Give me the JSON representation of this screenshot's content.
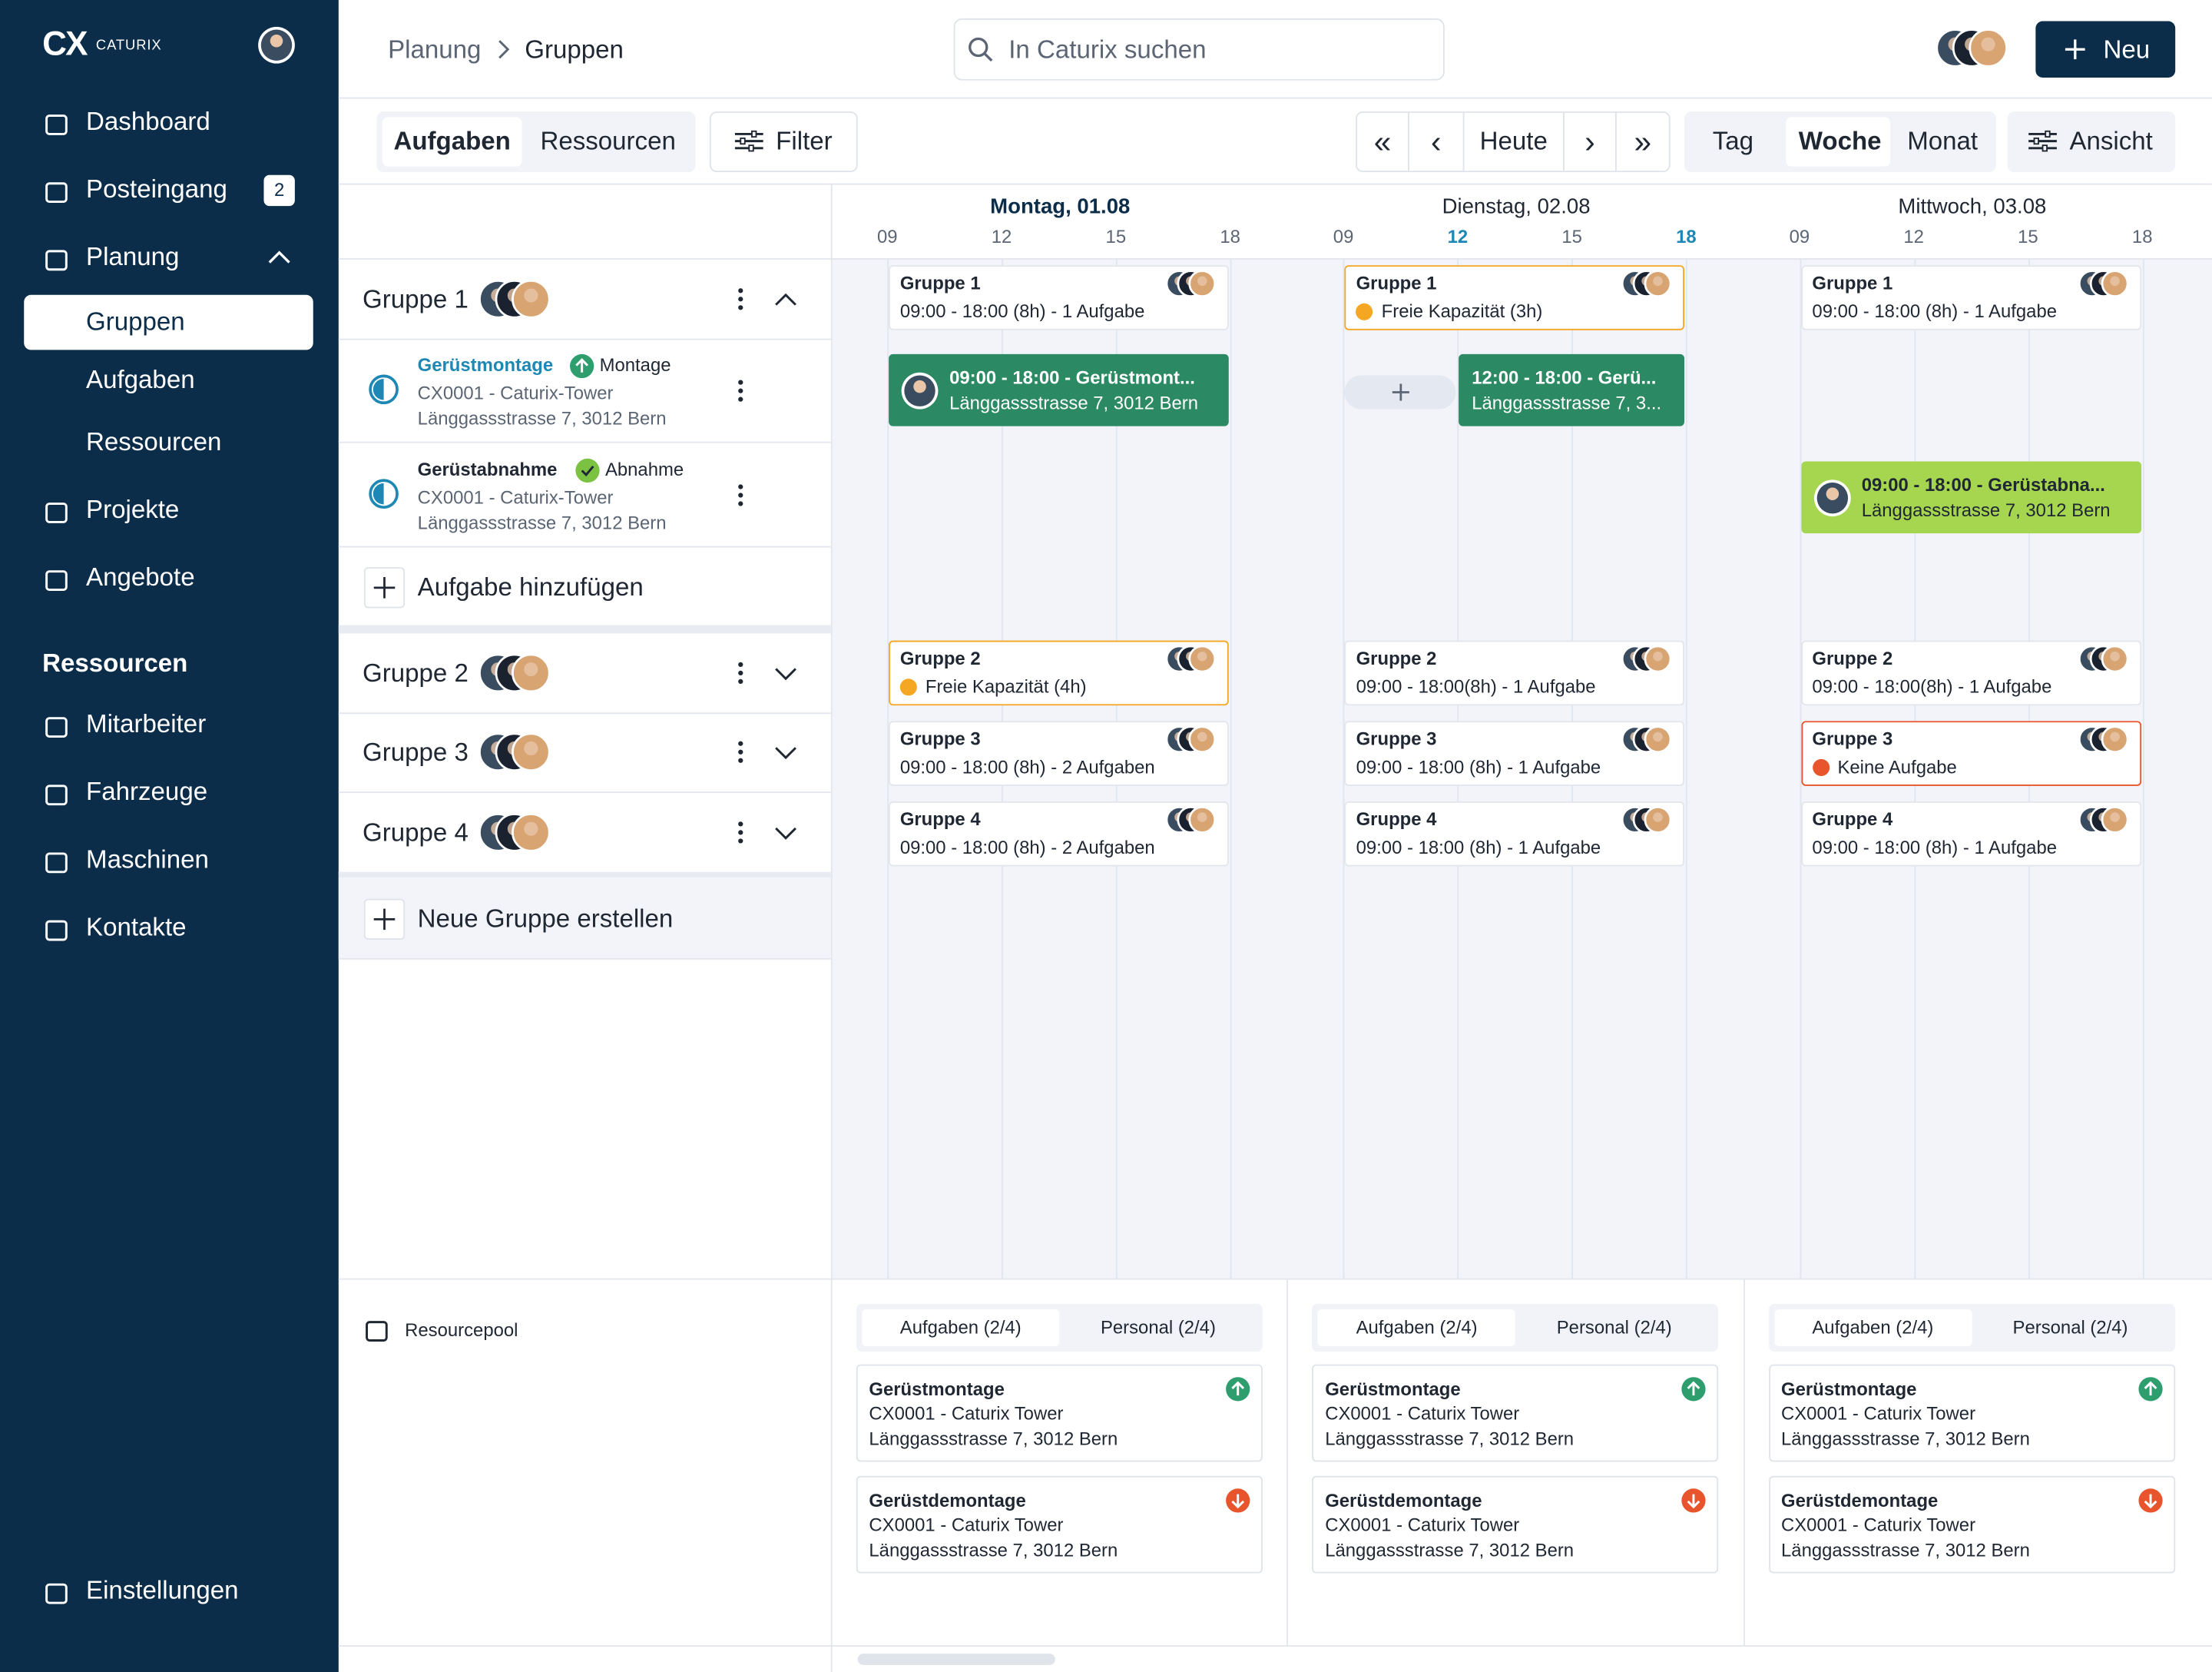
{
  "sidebar": {
    "logo": {
      "mark": "CX",
      "name": "CATURIX"
    },
    "items": [
      {
        "label": "Dashboard"
      },
      {
        "label": "Posteingang",
        "badge": 2
      },
      {
        "label": "Planung",
        "children": [
          "Gruppen",
          "Aufgaben",
          "Ressourcen"
        ]
      },
      {
        "label": "Projekte"
      },
      {
        "label": "Angebote"
      }
    ],
    "section_title": "Ressourcen",
    "resource_items": [
      "Mitarbeiter",
      "Fahrzeuge",
      "Maschinen",
      "Kontakte"
    ],
    "settings": "Einstellungen"
  },
  "header": {
    "breadcrumb": [
      "Planung",
      "Gruppen"
    ],
    "search": "In Caturix suchen",
    "new_button": "Neu"
  },
  "toolbar": {
    "tabs": [
      "Aufgaben",
      "Ressourcen"
    ],
    "filter": "Filter",
    "first": "«",
    "prev": "‹",
    "today": "Heute",
    "next": "›",
    "last": "»",
    "views": [
      "Tag",
      "Woche",
      "Monat"
    ],
    "view_settings": "Ansicht"
  },
  "groups": [
    {
      "name": "Gruppe 1",
      "tasks": [
        {
          "title": "Gerüstmontage",
          "tag": "Montage",
          "project": "CX0001 - Caturix-Tower",
          "address": "Länggassstrasse 7, 3012 Bern"
        },
        {
          "title": "Gerüstabnahme",
          "tag": "Abnahme",
          "project": "CX0001 - Caturix-Tower",
          "address": "Länggassstrasse 7, 3012 Bern"
        }
      ]
    },
    {
      "name": "Gruppe 2"
    },
    {
      "name": "Gruppe 3"
    },
    {
      "name": "Gruppe 4"
    }
  ],
  "add_task": "Aufgabe hinzufügen",
  "new_group": "Neue Gruppe erstellen",
  "days": [
    {
      "label": "Montag, 01.08",
      "active": true,
      "hours": [
        "09",
        "12",
        "15",
        "18"
      ],
      "highlighted_hours": [],
      "cells": [
        {
          "text": "09:00 - 18:00 (8h) - 1 Aufgabe",
          "status": "ok"
        },
        {
          "text": "Freie Kapazität (4h)",
          "status": "warning"
        },
        {
          "text": "09:00 - 18:00 (8h) - 2 Aufgaben",
          "status": "ok"
        },
        {
          "text": "09:00 - 18:00 (8h) - 2 Aufgaben",
          "status": "ok"
        }
      ],
      "events": [
        {
          "task": 0,
          "text": "09:00 - 18:00 - Gerüstmont...",
          "address": "Länggassstrasse 7, 3012 Bern",
          "color": "#2b8a63",
          "text_color": "#ffffff"
        }
      ]
    },
    {
      "label": "Dienstag, 02.08",
      "active": false,
      "hours": [
        "09",
        "12",
        "15",
        "18"
      ],
      "highlighted_hours": [
        1,
        3
      ],
      "cells": [
        {
          "text": "Freie Kapazität (3h)",
          "status": "warning"
        },
        {
          "text": "09:00 - 18:00(8h) - 1 Aufgabe",
          "status": "ok"
        },
        {
          "text": "09:00 - 18:00 (8h) - 1 Aufgabe",
          "status": "ok"
        },
        {
          "text": "09:00 - 18:00 (8h) - 1 Aufgabe",
          "status": "ok"
        }
      ],
      "events": [
        {
          "task": 0,
          "text": "12:00 - 18:00 - Gerü...",
          "address": "Länggassstrasse 7, 3...",
          "color": "#2b8a63",
          "text_color": "#ffffff",
          "free_slot": true
        }
      ]
    },
    {
      "label": "Mittwoch, 03.08",
      "active": false,
      "hours": [
        "09",
        "12",
        "15",
        "18"
      ],
      "highlighted_hours": [],
      "cells": [
        {
          "text": "09:00 - 18:00 (8h) - 1 Aufgabe",
          "status": "ok"
        },
        {
          "text": "09:00 - 18:00(8h) - 1 Aufgabe",
          "status": "ok"
        },
        {
          "text": "Keine Aufgabe",
          "status": "error"
        },
        {
          "text": "09:00 - 18:00 (8h) - 1 Aufgabe",
          "status": "ok"
        }
      ],
      "events": [
        {
          "task": 1,
          "text": "09:00 - 18:00 - Gerüstabna...",
          "address": "Länggassstrasse 7, 3012 Bern",
          "color": "#a6d650",
          "text_color": "#1f2733"
        }
      ]
    }
  ],
  "pool": {
    "label": "Resourcepool",
    "columns": [
      {
        "tabs": [
          "Aufgaben (2/4)",
          "Personal (2/4)"
        ],
        "cards": [
          {
            "title": "Gerüstmontage",
            "project": "CX0001 - Caturix Tower",
            "address": "Länggassstrasse 7, 3012 Bern",
            "direction": "up"
          },
          {
            "title": "Gerüstdemontage",
            "project": "CX0001 - Caturix Tower",
            "address": "Länggassstrasse 7, 3012 Bern",
            "direction": "down"
          }
        ]
      },
      {
        "tabs": [
          "Aufgaben (2/4)",
          "Personal (2/4)"
        ],
        "cards": [
          {
            "title": "Gerüstmontage",
            "project": "CX0001 - Caturix Tower",
            "address": "Länggassstrasse 7, 3012 Bern",
            "direction": "up"
          },
          {
            "title": "Gerüstdemontage",
            "project": "CX0001 - Caturix Tower",
            "address": "Länggassstrasse 7, 3012 Bern",
            "direction": "down"
          }
        ]
      },
      {
        "tabs": [
          "Aufgaben (2/4)",
          "Personal (2/4)"
        ],
        "cards": [
          {
            "title": "Gerüstmontage",
            "project": "CX0001 - Caturix Tower",
            "address": "Länggassstrasse 7, 3012 Bern",
            "direction": "up"
          },
          {
            "title": "Gerüstdemontage",
            "project": "CX0001 - Caturix Tower",
            "address": "Länggassstrasse 7, 3012 Bern",
            "direction": "down"
          }
        ]
      }
    ]
  }
}
